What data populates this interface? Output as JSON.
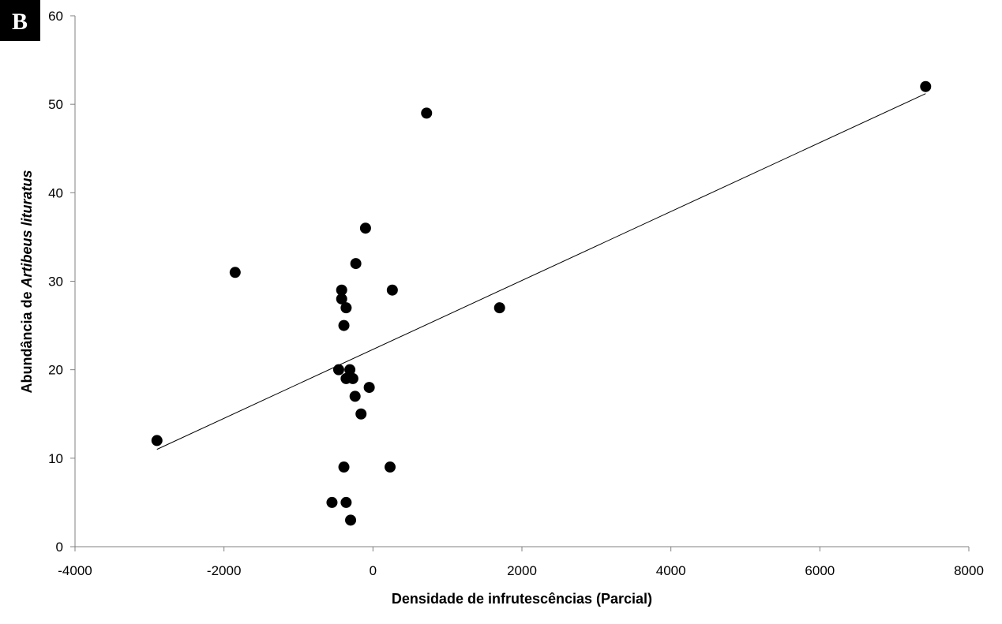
{
  "chart_data": {
    "type": "scatter",
    "panel_label": "B",
    "xlabel": "Densidade de infrutescências (Parcial)",
    "ylabel_prefix": "Abundância de ",
    "ylabel_italic": "Artibeus lituratus",
    "xlim": [
      -4000,
      8000
    ],
    "ylim": [
      0,
      60
    ],
    "x_ticks": [
      -4000,
      -2000,
      0,
      2000,
      4000,
      6000,
      8000
    ],
    "y_ticks": [
      0,
      10,
      20,
      30,
      40,
      50,
      60
    ],
    "x_tick_labels": [
      "-4000",
      "-2000",
      "0",
      "2000",
      "4000",
      "6000",
      "8000"
    ],
    "y_tick_labels": [
      "0",
      "10",
      "20",
      "30",
      "40",
      "50",
      "60"
    ],
    "grid": false,
    "legend": "none",
    "marker_color": "#000000",
    "points": [
      {
        "x": -2900,
        "y": 12
      },
      {
        "x": -1850,
        "y": 31
      },
      {
        "x": -550,
        "y": 5
      },
      {
        "x": -460,
        "y": 20
      },
      {
        "x": -420,
        "y": 29
      },
      {
        "x": -420,
        "y": 28
      },
      {
        "x": -390,
        "y": 25
      },
      {
        "x": -390,
        "y": 9
      },
      {
        "x": -360,
        "y": 27
      },
      {
        "x": -360,
        "y": 19
      },
      {
        "x": -360,
        "y": 5
      },
      {
        "x": -310,
        "y": 20
      },
      {
        "x": -300,
        "y": 3
      },
      {
        "x": -270,
        "y": 19
      },
      {
        "x": -240,
        "y": 17
      },
      {
        "x": -230,
        "y": 32
      },
      {
        "x": -160,
        "y": 15
      },
      {
        "x": -100,
        "y": 36
      },
      {
        "x": -50,
        "y": 18
      },
      {
        "x": 230,
        "y": 9
      },
      {
        "x": 260,
        "y": 29
      },
      {
        "x": 720,
        "y": 49
      },
      {
        "x": 1700,
        "y": 27
      },
      {
        "x": 7420,
        "y": 52
      }
    ],
    "trendline": {
      "x": [
        -2900,
        7420
      ],
      "y": [
        11.0,
        51.2
      ]
    }
  }
}
